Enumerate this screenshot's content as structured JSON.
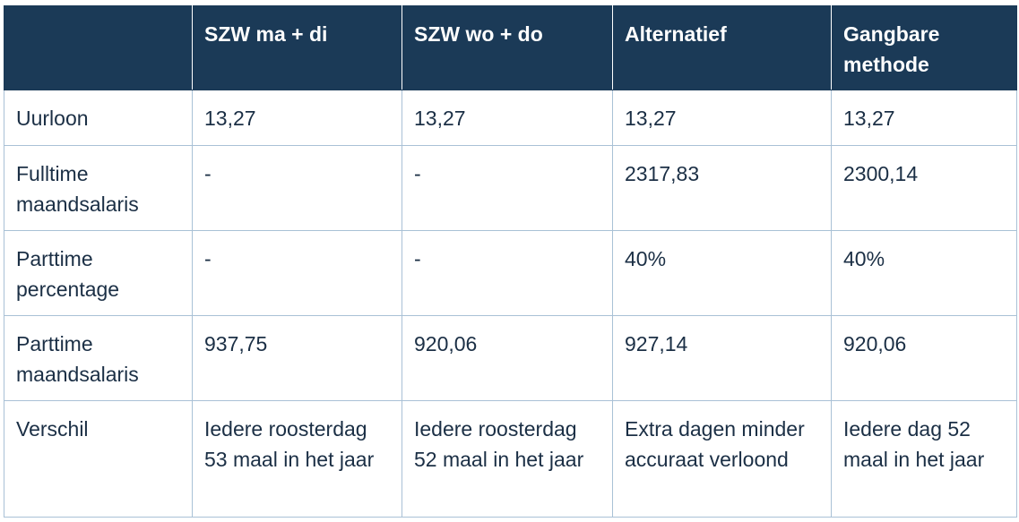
{
  "table": {
    "header": [
      "SZW ma + di",
      "SZW wo + do",
      "Alternatief",
      "Gangbare methode"
    ],
    "rows": [
      [
        "Uurloon",
        "13,27",
        "13,27",
        "13,27",
        "13,27"
      ],
      [
        "Fulltime maandsalaris",
        "-",
        "-",
        "2317,83",
        "2300,14"
      ],
      [
        "Parttime percentage",
        "-",
        "-",
        "40%",
        "40%"
      ],
      [
        "Parttime maandsalaris",
        "937,75",
        "920,06",
        "927,14",
        "920,06"
      ],
      [
        "Verschil",
        "Iedere roosterdag 53 maal in het jaar",
        "Iedere roosterdag 52 maal in het jaar",
        "Extra dagen minder accuraat verloond",
        "Iedere dag 52 maal in het jaar"
      ]
    ]
  }
}
